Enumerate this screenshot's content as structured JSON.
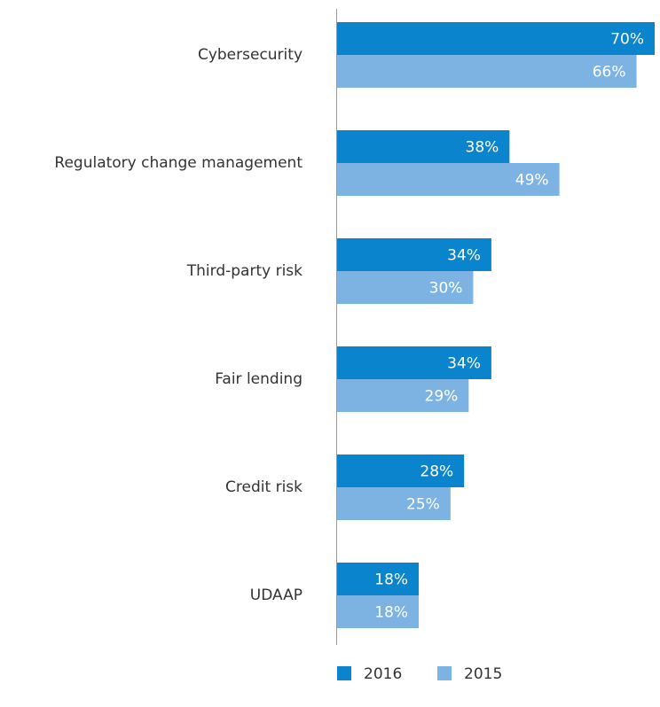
{
  "chart_data": {
    "type": "barh",
    "categories": [
      "Cybersecurity",
      "Regulatory change management",
      "Third-party risk",
      "Fair lending",
      "Credit risk",
      "UDAAP"
    ],
    "series": [
      {
        "name": "2016",
        "color": "#0a84cc",
        "values": [
          70,
          38,
          34,
          34,
          28,
          18
        ],
        "value_labels": [
          "70%",
          "38%",
          "34%",
          "34%",
          "28%",
          "18%"
        ]
      },
      {
        "name": "2015",
        "color": "#7db3e2",
        "values": [
          66,
          49,
          30,
          29,
          25,
          18
        ],
        "value_labels": [
          "66%",
          "49%",
          "30%",
          "29%",
          "25%",
          "18%"
        ]
      }
    ],
    "legend": "bottom"
  }
}
